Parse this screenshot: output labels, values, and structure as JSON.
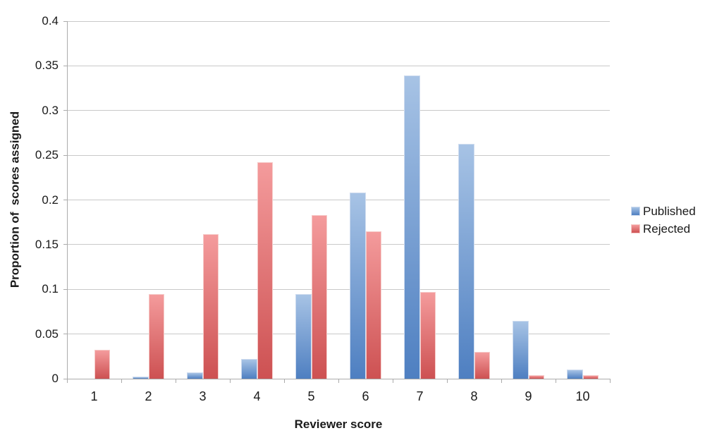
{
  "chart_data": {
    "type": "bar",
    "title": "",
    "xlabel": "Reviewer score",
    "ylabel": "Proportion of  scores assigned",
    "categories": [
      "1",
      "2",
      "3",
      "4",
      "5",
      "6",
      "7",
      "8",
      "9",
      "10"
    ],
    "series": [
      {
        "name": "Published",
        "color_top": "#a7c3e5",
        "color_bottom": "#4e7fc1",
        "border_color": "#cfdcef",
        "values": [
          0,
          0.002,
          0.007,
          0.022,
          0.095,
          0.208,
          0.339,
          0.263,
          0.065,
          0.01
        ]
      },
      {
        "name": "Rejected",
        "color_top": "#f49b9c",
        "color_bottom": "#cd5152",
        "border_color": "#f6cbc9",
        "values": [
          0.032,
          0.095,
          0.162,
          0.242,
          0.183,
          0.165,
          0.097,
          0.03,
          0.004,
          0.004
        ]
      }
    ],
    "ylim": [
      0,
      0.4
    ],
    "ytick_step": 0.05,
    "ytick_labels": [
      "0",
      "0.05",
      "0.1",
      "0.15",
      "0.2",
      "0.25",
      "0.3",
      "0.35",
      "0.4"
    ],
    "grid": true,
    "legend_position": "right",
    "gridline_color": "#c9c9c9",
    "axis_color": "#ababab",
    "text_color": "#1a1a1a"
  }
}
